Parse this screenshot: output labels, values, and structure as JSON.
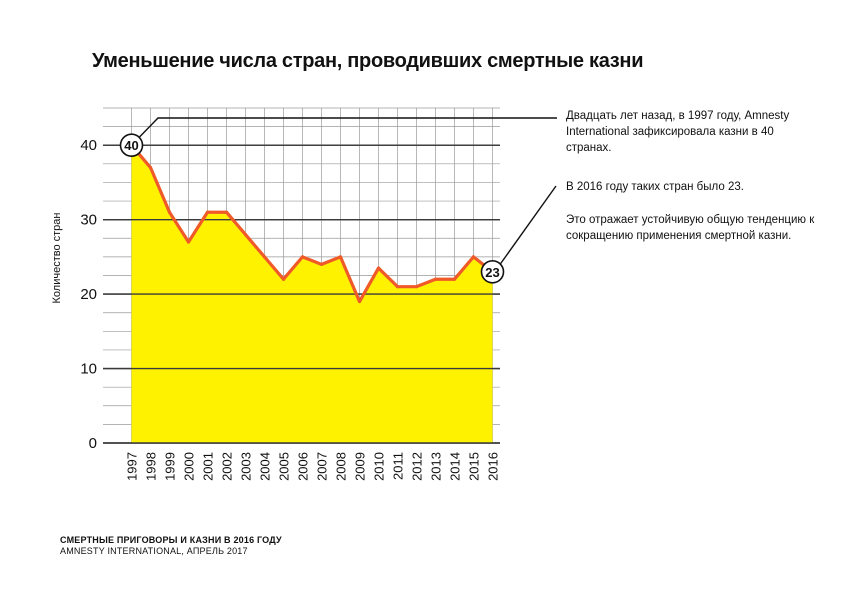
{
  "title": "Уменьшение числа стран, проводивших смертные казни",
  "annotations": {
    "note_1997": "Двадцать лет назад, в 1997 году, Amnesty International зафиксировала казни в 40 странах.",
    "note_2016": "В 2016 году таких стран было 23.",
    "note_trend": "Это отражает устойчивую общую тенденцию к сокращению применения смертной казни."
  },
  "footer": {
    "line1": "СМЕРТНЫЕ ПРИГОВОРЫ И КАЗНИ В 2016 ГОДУ",
    "line2": "AMNESTY INTERNATIONAL, АПРЕЛЬ 2017"
  },
  "colors": {
    "fill": "#fff200",
    "line": "#f05a28",
    "grid_major": "#3a3a3a",
    "grid_minor": "#9a9a9a"
  },
  "chart_data": {
    "type": "area",
    "title": "Уменьшение числа стран, проводивших смертные казни",
    "xlabel": "",
    "ylabel": "Количество стран",
    "x": [
      "1997",
      "1998",
      "1999",
      "2000",
      "2001",
      "2002",
      "2003",
      "2004",
      "2005",
      "2006",
      "2007",
      "2008",
      "2009",
      "2010",
      "2011",
      "2012",
      "2013",
      "2014",
      "2015",
      "2016"
    ],
    "series": [
      {
        "values": [
          40,
          37,
          31,
          27,
          31,
          31,
          28,
          25,
          22,
          25,
          24,
          25,
          19,
          23.5,
          21,
          21,
          22,
          22,
          25,
          23
        ]
      }
    ],
    "ylim": [
      0,
      45
    ],
    "yticks": [
      0,
      10,
      20,
      30,
      40
    ],
    "grid": true,
    "callouts": [
      {
        "x": "1997",
        "label": "40"
      },
      {
        "x": "2016",
        "label": "23"
      }
    ]
  }
}
